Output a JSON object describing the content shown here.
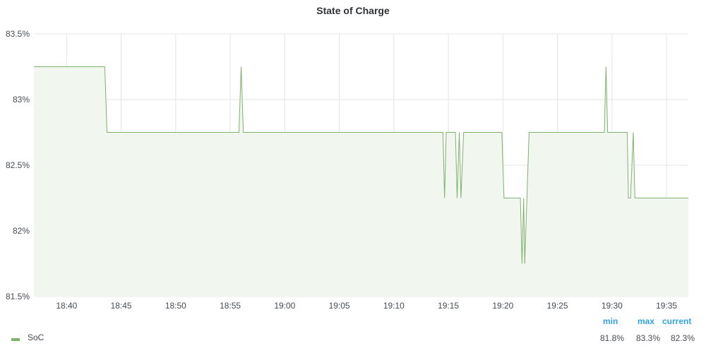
{
  "panel": {
    "title": "State of Charge"
  },
  "chart_data": {
    "type": "area",
    "title": "State of Charge",
    "xlabel": "",
    "ylabel": "",
    "x_range": [
      "18:37",
      "19:37"
    ],
    "ylim": [
      81.5,
      83.5
    ],
    "y_ticks": [
      "81.5%",
      "82%",
      "82.5%",
      "83%",
      "83.5%"
    ],
    "y_tick_values": [
      81.5,
      82,
      82.5,
      83,
      83.5
    ],
    "x_ticks": [
      "18:40",
      "18:45",
      "18:50",
      "18:55",
      "19:00",
      "19:05",
      "19:10",
      "19:15",
      "19:20",
      "19:25",
      "19:30",
      "19:35"
    ],
    "x_tick_minutes": [
      3,
      8,
      13,
      18,
      23,
      28,
      33,
      38,
      43,
      48,
      53,
      58
    ],
    "grid": true,
    "legend_position": "bottom",
    "series": [
      {
        "name": "SoC",
        "color": "#7eb26d",
        "x_minutes": [
          0,
          6.5,
          6.7,
          18.8,
          19.0,
          19.2,
          37.5,
          37.65,
          37.8,
          38.65,
          38.8,
          39.0,
          39.15,
          39.4,
          42.9,
          43.1,
          44.6,
          44.75,
          44.9,
          45.0,
          45.2,
          45.4,
          52.3,
          52.45,
          52.6,
          54.4,
          54.5,
          54.7,
          54.95,
          55.1,
          60
        ],
        "values": [
          83.25,
          83.25,
          82.75,
          82.75,
          83.25,
          82.75,
          82.75,
          82.25,
          82.75,
          82.75,
          82.25,
          82.75,
          82.25,
          82.75,
          82.75,
          82.25,
          82.25,
          81.75,
          82.25,
          81.75,
          82.25,
          82.75,
          82.75,
          83.25,
          82.75,
          82.75,
          82.25,
          82.25,
          82.75,
          82.25,
          82.25
        ]
      }
    ]
  },
  "legend": {
    "series_name": "SoC",
    "stats_headers": {
      "min": "min",
      "max": "max",
      "current": "current"
    },
    "stats_values": {
      "min": "81.8%",
      "max": "83.3%",
      "current": "82.3%"
    }
  },
  "colors": {
    "series": "#7eb26d",
    "fill": "#f1f6ef",
    "grid": "#e4e4e4",
    "stat_header": "#33a2e5"
  }
}
